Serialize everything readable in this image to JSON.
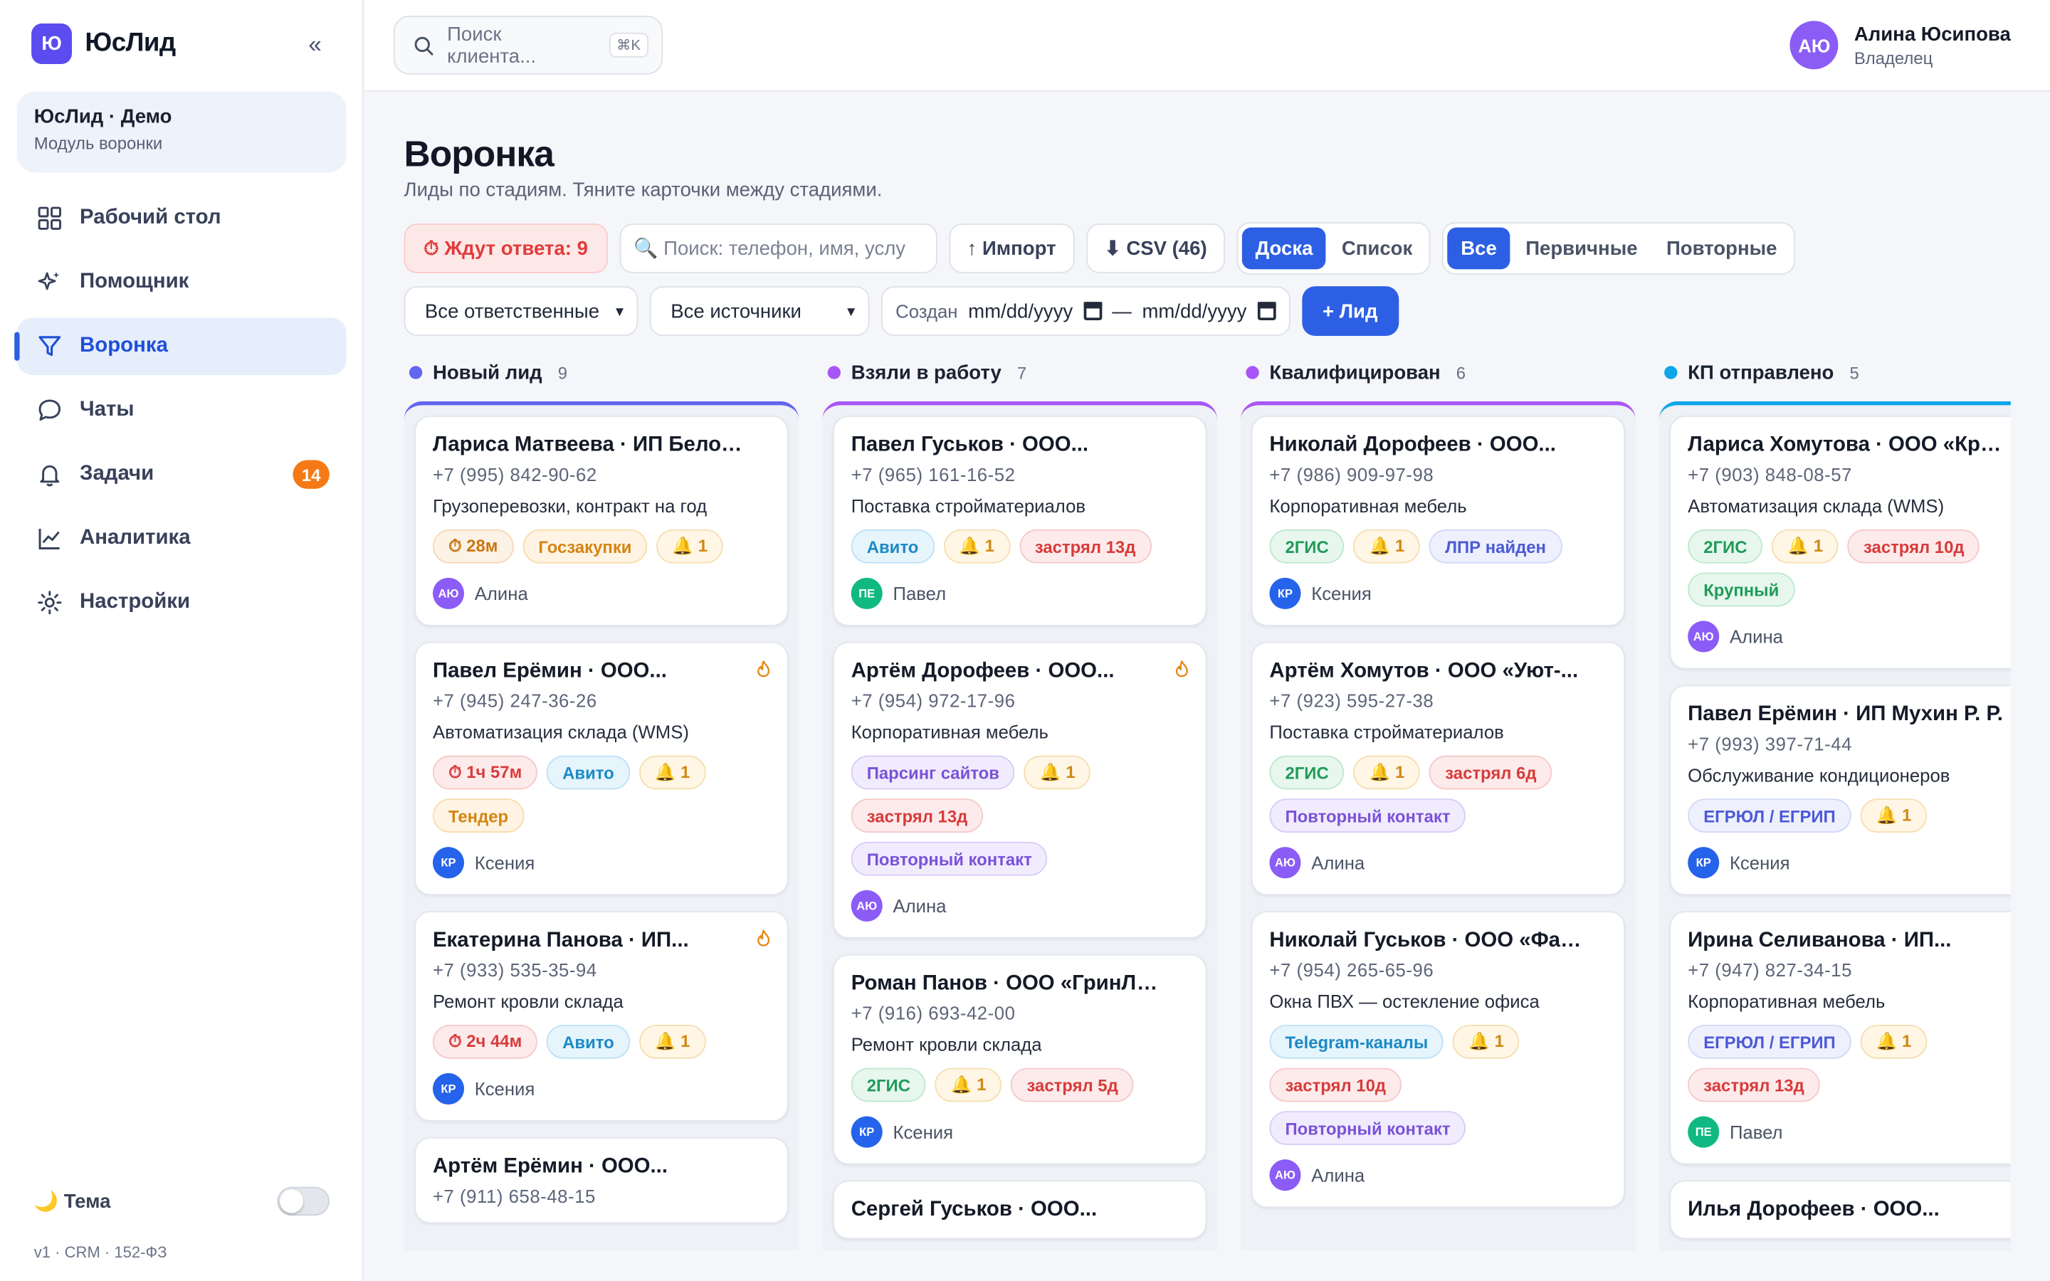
{
  "brand": {
    "logo": "Ю",
    "name": "ЮсЛид"
  },
  "workspace": {
    "name": "ЮсЛид · Демо",
    "sub": "Модуль воронки"
  },
  "nav": [
    {
      "label": "Рабочий стол",
      "icon": "grid-icon"
    },
    {
      "label": "Помощник",
      "icon": "sparkle-icon"
    },
    {
      "label": "Воронка",
      "icon": "funnel-icon",
      "active": true
    },
    {
      "label": "Чаты",
      "icon": "chat-icon"
    },
    {
      "label": "Задачи",
      "icon": "bell-icon",
      "badge": "14"
    },
    {
      "label": "Аналитика",
      "icon": "chart-icon"
    },
    {
      "label": "Настройки",
      "icon": "gear-icon"
    }
  ],
  "theme": {
    "label": "🌙 Тема"
  },
  "version": "v1 · CRM · 152-ФЗ",
  "top_search": {
    "placeholder": "Поиск клиента...",
    "shortcut": "⌘K"
  },
  "user": {
    "initials": "АЮ",
    "name": "Алина Юсипова",
    "role": "Владелец"
  },
  "page": {
    "title": "Воронка",
    "subtitle": "Лиды по стадиям. Тяните карточки между стадиями."
  },
  "toolbar": {
    "waiting": "⏱ Ждут ответа: 9",
    "search_placeholder": "🔍 Поиск: телефон, имя, услу",
    "import": "↑ Импорт",
    "csv": "⬇ CSV (46)",
    "view": [
      "Доска",
      "Список"
    ],
    "filter": [
      "Все",
      "Первичные",
      "Повторные"
    ],
    "owner_select": "Все ответственные",
    "source_select": "Все источники",
    "created_label": "Создан",
    "date_from": "mm/dd/yyyy",
    "date_sep": "—",
    "date_to": "mm/dd/yyyy",
    "add_lead": "+ Лид"
  },
  "colors": {
    "accent": "#2c5fe4",
    "brand": "#5b4cf0"
  },
  "columns": [
    {
      "name": "Новый лид",
      "count": "9",
      "color": "#6366f1",
      "cards": [
        {
          "title": "Лариса Матвеева · ИП Белов Д...",
          "phone": "+7 (995) 842-90-62",
          "desc": "Грузоперевозки, контракт на год",
          "tags": [
            {
              "text": "⏱ 28м",
              "cls": "t-time"
            },
            {
              "text": "Госзакупки",
              "cls": "t-orange"
            },
            {
              "text": "🔔 1",
              "cls": "t-bell"
            }
          ],
          "owner": "Алина",
          "ini": "АЮ",
          "ava": "#8b5cf6"
        },
        {
          "title": "Павел Ерёмин · ООО...",
          "phone": "+7 (945) 247-36-26",
          "desc": "Автоматизация склада (WMS)",
          "fire": true,
          "tags": [
            {
              "text": "⏱ 1ч 57м",
              "cls": "t-time red"
            },
            {
              "text": "Авито",
              "cls": "t-blue"
            },
            {
              "text": "🔔 1",
              "cls": "t-bell"
            },
            {
              "text": "Тендер",
              "cls": "t-orange"
            }
          ],
          "owner": "Ксения",
          "ini": "КР",
          "ava": "#2563eb"
        },
        {
          "title": "Екатерина Панова · ИП...",
          "phone": "+7 (933) 535-35-94",
          "desc": "Ремонт кровли склада",
          "fire": true,
          "tags": [
            {
              "text": "⏱ 2ч 44м",
              "cls": "t-time red"
            },
            {
              "text": "Авито",
              "cls": "t-blue"
            },
            {
              "text": "🔔 1",
              "cls": "t-bell"
            }
          ],
          "owner": "Ксения",
          "ini": "КР",
          "ava": "#2563eb"
        },
        {
          "title": "Артём Ерёмин · ООО...",
          "phone": "+7 (911) 658-48-15",
          "desc": "",
          "tags": [],
          "owner": "",
          "ini": "",
          "ava": "#2563eb"
        }
      ]
    },
    {
      "name": "Взяли в работу",
      "count": "7",
      "color": "#a855f7",
      "cards": [
        {
          "title": "Павел Гуськов · ООО...",
          "phone": "+7 (965) 161-16-52",
          "desc": "Поставка стройматериалов",
          "tags": [
            {
              "text": "Авито",
              "cls": "t-blue"
            },
            {
              "text": "🔔 1",
              "cls": "t-bell"
            },
            {
              "text": "застрял 13д",
              "cls": "t-red"
            }
          ],
          "owner": "Павел",
          "ini": "ПЕ",
          "ava": "#10b981"
        },
        {
          "title": "Артём Дорофеев · ООО...",
          "phone": "+7 (954) 972-17-96",
          "desc": "Корпоративная мебель",
          "fire": true,
          "tags": [
            {
              "text": "Парсинг сайтов",
              "cls": "t-purple"
            },
            {
              "text": "🔔 1",
              "cls": "t-bell"
            },
            {
              "text": "застрял 13д",
              "cls": "t-red"
            },
            {
              "text": "Повторный контакт",
              "cls": "t-purple"
            }
          ],
          "owner": "Алина",
          "ini": "АЮ",
          "ava": "#8b5cf6"
        },
        {
          "title": "Роман Панов · ООО «ГринЛайт»",
          "phone": "+7 (916) 693-42-00",
          "desc": "Ремонт кровли склада",
          "tags": [
            {
              "text": "2ГИС",
              "cls": "t-green"
            },
            {
              "text": "🔔 1",
              "cls": "t-bell"
            },
            {
              "text": "застрял 5д",
              "cls": "t-red"
            }
          ],
          "owner": "Ксения",
          "ini": "КР",
          "ava": "#2563eb"
        },
        {
          "title": "Сергей Гуськов · ООО...",
          "phone": "",
          "desc": "",
          "tags": [],
          "owner": "",
          "ini": "",
          "ava": "#2563eb"
        }
      ]
    },
    {
      "name": "Квалифицирован",
      "count": "6",
      "color": "#a855f7",
      "cards": [
        {
          "title": "Николай Дорофеев · ООО...",
          "phone": "+7 (986) 909-97-98",
          "desc": "Корпоративная мебель",
          "tags": [
            {
              "text": "2ГИС",
              "cls": "t-green"
            },
            {
              "text": "🔔 1",
              "cls": "t-bell"
            },
            {
              "text": "ЛПР найден",
              "cls": "t-indigo"
            }
          ],
          "owner": "Ксения",
          "ini": "КР",
          "ava": "#2563eb"
        },
        {
          "title": "Артём Хомутов · ООО «Уют-...",
          "phone": "+7 (923) 595-27-38",
          "desc": "Поставка стройматериалов",
          "tags": [
            {
              "text": "2ГИС",
              "cls": "t-green"
            },
            {
              "text": "🔔 1",
              "cls": "t-bell"
            },
            {
              "text": "застрял 6д",
              "cls": "t-red"
            },
            {
              "text": "Повторный контакт",
              "cls": "t-purple"
            }
          ],
          "owner": "Алина",
          "ini": "АЮ",
          "ava": "#8b5cf6"
        },
        {
          "title": "Николай Гуськов · ООО «Фаса...",
          "phone": "+7 (954) 265-65-96",
          "desc": "Окна ПВХ — остекление офиса",
          "tags": [
            {
              "text": "Telegram-каналы",
              "cls": "t-blue"
            },
            {
              "text": "🔔 1",
              "cls": "t-bell"
            },
            {
              "text": "застрял 10д",
              "cls": "t-red"
            },
            {
              "text": "Повторный контакт",
              "cls": "t-purple"
            }
          ],
          "owner": "Алина",
          "ini": "АЮ",
          "ava": "#8b5cf6"
        }
      ]
    },
    {
      "name": "КП отправлено",
      "count": "5",
      "color": "#0ea5e9",
      "cards": [
        {
          "title": "Лариса Хомутова · ООО «Кров...",
          "phone": "+7 (903) 848-08-57",
          "desc": "Автоматизация склада (WMS)",
          "tags": [
            {
              "text": "2ГИС",
              "cls": "t-green"
            },
            {
              "text": "🔔 1",
              "cls": "t-bell"
            },
            {
              "text": "застрял 10д",
              "cls": "t-red"
            },
            {
              "text": "Крупный",
              "cls": "t-green"
            }
          ],
          "owner": "Алина",
          "ini": "АЮ",
          "ava": "#8b5cf6"
        },
        {
          "title": "Павел Ерёмин · ИП Мухин Р. Р.",
          "phone": "+7 (993) 397-71-44",
          "desc": "Обслуживание кондиционеров",
          "tags": [
            {
              "text": "ЕГРЮЛ / ЕГРИП",
              "cls": "t-indigo"
            },
            {
              "text": "🔔 1",
              "cls": "t-bell"
            }
          ],
          "owner": "Ксения",
          "ini": "КР",
          "ava": "#2563eb"
        },
        {
          "title": "Ирина Селиванова · ИП...",
          "phone": "+7 (947) 827-34-15",
          "desc": "Корпоративная мебель",
          "tags": [
            {
              "text": "ЕГРЮЛ / ЕГРИП",
              "cls": "t-indigo"
            },
            {
              "text": "🔔 1",
              "cls": "t-bell"
            },
            {
              "text": "застрял 13д",
              "cls": "t-red"
            }
          ],
          "owner": "Павел",
          "ini": "ПЕ",
          "ava": "#10b981"
        },
        {
          "title": "Илья Дорофеев · ООО...",
          "phone": "",
          "desc": "",
          "tags": [],
          "owner": "",
          "ini": "",
          "ava": "#2563eb"
        }
      ]
    }
  ]
}
